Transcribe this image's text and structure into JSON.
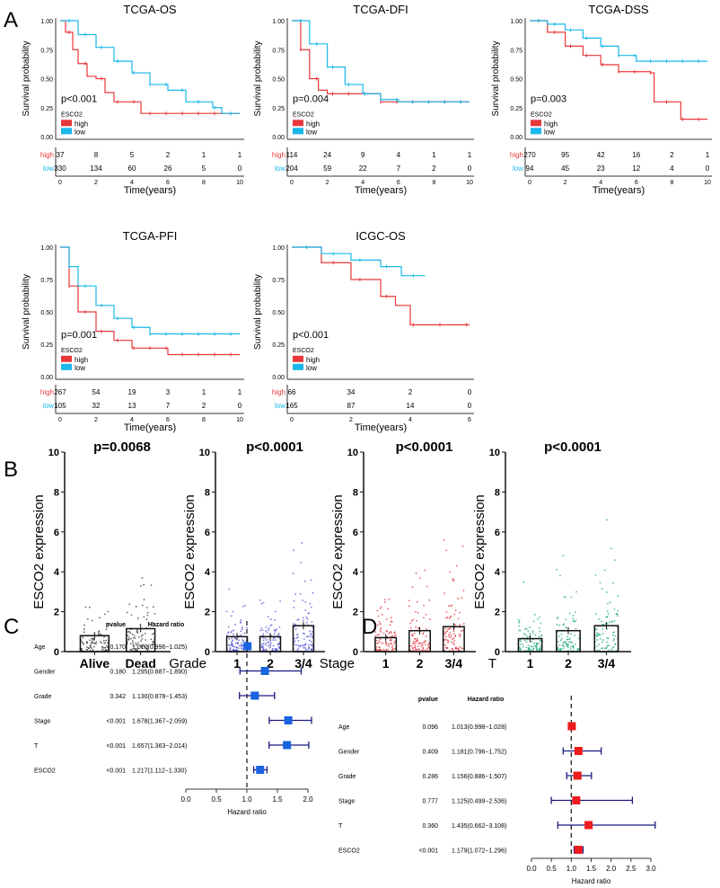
{
  "panel_letters": [
    "A",
    "B",
    "C",
    "D"
  ],
  "colors": {
    "high": "#e8373a",
    "low": "#1ab7ea",
    "grade": "#4b4bd6",
    "stage": "#e0303a",
    "t": "#1aa874",
    "forest_box_C": "#1a63e0",
    "forest_box_D": "#ee1c1c",
    "ci_line": "#1a1a80"
  },
  "chart_data": [
    {
      "type": "line",
      "subtype": "kaplan-meier",
      "title": "TCGA-OS",
      "ylabel": "Survival probability",
      "xlabel": "Time(years)",
      "xlim": [
        0,
        10
      ],
      "ylim": [
        0,
        1
      ],
      "xticks": [
        "0",
        "2",
        "4",
        "6",
        "8",
        "10"
      ],
      "yticks": [
        "0.00",
        "0.25",
        "0.50",
        "0.75",
        "1.00"
      ],
      "pvalue": "p<0.001",
      "legend_title": "ESCO2",
      "series": [
        {
          "name": "high",
          "points": [
            [
              0,
              1
            ],
            [
              0.3,
              0.9
            ],
            [
              0.7,
              0.75
            ],
            [
              1,
              0.63
            ],
            [
              1.5,
              0.52
            ],
            [
              2,
              0.5
            ],
            [
              2.5,
              0.38
            ],
            [
              3,
              0.3
            ],
            [
              4.3,
              0.3
            ],
            [
              4.5,
              0.2
            ],
            [
              10,
              0.2
            ]
          ],
          "at_risk": [
            37,
            8,
            5,
            2,
            1,
            1
          ]
        },
        {
          "name": "low",
          "points": [
            [
              0,
              1
            ],
            [
              1,
              0.88
            ],
            [
              2,
              0.77
            ],
            [
              3,
              0.65
            ],
            [
              4,
              0.55
            ],
            [
              5,
              0.45
            ],
            [
              6,
              0.4
            ],
            [
              7,
              0.3
            ],
            [
              8.5,
              0.25
            ],
            [
              9,
              0.2
            ],
            [
              10,
              0.2
            ]
          ],
          "at_risk": [
            330,
            134,
            60,
            26,
            5,
            0
          ]
        }
      ]
    },
    {
      "type": "line",
      "subtype": "kaplan-meier",
      "title": "TCGA-DFI",
      "ylabel": "Survival probability",
      "xlabel": "Time(years)",
      "xlim": [
        0,
        10
      ],
      "ylim": [
        0,
        1
      ],
      "xticks": [
        "0",
        "2",
        "4",
        "6",
        "8",
        "10"
      ],
      "yticks": [
        "0.00",
        "0.25",
        "0.50",
        "0.75",
        "1.00"
      ],
      "pvalue": "p=0.004",
      "legend_title": "ESCO2",
      "series": [
        {
          "name": "high",
          "points": [
            [
              0,
              1
            ],
            [
              0.5,
              0.75
            ],
            [
              1,
              0.5
            ],
            [
              1.5,
              0.4
            ],
            [
              2,
              0.37
            ],
            [
              4,
              0.37
            ],
            [
              5,
              0.3
            ],
            [
              10,
              0.3
            ]
          ],
          "at_risk": [
            114,
            24,
            9,
            4,
            1,
            1
          ]
        },
        {
          "name": "low",
          "points": [
            [
              0,
              1
            ],
            [
              1,
              0.8
            ],
            [
              2,
              0.6
            ],
            [
              3,
              0.45
            ],
            [
              4,
              0.37
            ],
            [
              5,
              0.32
            ],
            [
              6,
              0.3
            ],
            [
              10,
              0.3
            ]
          ],
          "at_risk": [
            204,
            59,
            22,
            7,
            2,
            0
          ]
        }
      ]
    },
    {
      "type": "line",
      "subtype": "kaplan-meier",
      "title": "TCGA-DSS",
      "ylabel": "Survival probability",
      "xlabel": "Time(years)",
      "xlim": [
        0,
        10
      ],
      "ylim": [
        0,
        1
      ],
      "xticks": [
        "0",
        "2",
        "4",
        "6",
        "8",
        "10"
      ],
      "yticks": [
        "0.00",
        "0.25",
        "0.50",
        "0.75",
        "1.00"
      ],
      "pvalue": "p=0.003",
      "legend_title": "ESCO2",
      "series": [
        {
          "name": "high",
          "points": [
            [
              0,
              1
            ],
            [
              1,
              0.9
            ],
            [
              2,
              0.78
            ],
            [
              3,
              0.7
            ],
            [
              4,
              0.62
            ],
            [
              5,
              0.56
            ],
            [
              6.8,
              0.55
            ],
            [
              7,
              0.3
            ],
            [
              8.5,
              0.15
            ],
            [
              10,
              0.15
            ]
          ],
          "at_risk": [
            270,
            95,
            42,
            16,
            2,
            1
          ]
        },
        {
          "name": "low",
          "points": [
            [
              0,
              1
            ],
            [
              1,
              0.97
            ],
            [
              2,
              0.92
            ],
            [
              3,
              0.85
            ],
            [
              4,
              0.78
            ],
            [
              5,
              0.7
            ],
            [
              6,
              0.65
            ],
            [
              10,
              0.65
            ]
          ],
          "at_risk": [
            94,
            45,
            23,
            12,
            4,
            0
          ]
        }
      ]
    },
    {
      "type": "line",
      "subtype": "kaplan-meier",
      "title": "TCGA-PFI",
      "ylabel": "Survival probability",
      "xlabel": "Time(years)",
      "xlim": [
        0,
        10
      ],
      "ylim": [
        0,
        1
      ],
      "xticks": [
        "0",
        "2",
        "4",
        "6",
        "8",
        "10"
      ],
      "yticks": [
        "0.00",
        "0.25",
        "0.50",
        "0.75",
        "1.00"
      ],
      "pvalue": "p=0.001",
      "legend_title": "ESCO2",
      "series": [
        {
          "name": "high",
          "points": [
            [
              0,
              1
            ],
            [
              0.5,
              0.7
            ],
            [
              1,
              0.5
            ],
            [
              2,
              0.35
            ],
            [
              3,
              0.28
            ],
            [
              4,
              0.22
            ],
            [
              6,
              0.17
            ],
            [
              10,
              0.17
            ]
          ],
          "at_risk": [
            267,
            54,
            19,
            3,
            1,
            1
          ]
        },
        {
          "name": "low",
          "points": [
            [
              0,
              1
            ],
            [
              0.5,
              0.85
            ],
            [
              1,
              0.7
            ],
            [
              2,
              0.55
            ],
            [
              3,
              0.45
            ],
            [
              4,
              0.38
            ],
            [
              5,
              0.33
            ],
            [
              10,
              0.33
            ]
          ],
          "at_risk": [
            105,
            32,
            13,
            7,
            2,
            0
          ]
        }
      ]
    },
    {
      "type": "line",
      "subtype": "kaplan-meier",
      "title": "ICGC-OS",
      "ylabel": "Survival probability",
      "xlabel": "Time(years)",
      "xlim": [
        0,
        6
      ],
      "ylim": [
        0,
        1
      ],
      "xticks": [
        "0",
        "2",
        "4",
        "6"
      ],
      "yticks": [
        "0.00",
        "0.25",
        "0.50",
        "0.75",
        "1.00"
      ],
      "pvalue": "p<0.001",
      "legend_title": "ESCO2",
      "series": [
        {
          "name": "high",
          "points": [
            [
              0,
              1
            ],
            [
              1,
              0.88
            ],
            [
              2,
              0.75
            ],
            [
              3,
              0.62
            ],
            [
              3.5,
              0.55
            ],
            [
              4,
              0.4
            ],
            [
              6,
              0.4
            ]
          ],
          "at_risk": [
            66,
            34,
            2,
            0
          ]
        },
        {
          "name": "low",
          "points": [
            [
              0,
              1
            ],
            [
              1,
              0.95
            ],
            [
              2,
              0.9
            ],
            [
              3,
              0.85
            ],
            [
              3.7,
              0.78
            ],
            [
              4.5,
              0.78
            ]
          ],
          "at_risk": [
            165,
            87,
            14,
            0
          ]
        }
      ]
    },
    {
      "type": "bar",
      "title": "p=0.0068",
      "ylabel": "ESCO2 expression",
      "xlabel": "",
      "categories": [
        "Alive",
        "Dead"
      ],
      "values": [
        0.8,
        1.15
      ],
      "ylim": [
        0,
        10
      ],
      "yticks": [
        "0",
        "2",
        "4",
        "6",
        "8",
        "10"
      ],
      "color": "#333333"
    },
    {
      "type": "bar",
      "title": "p<0.0001",
      "ylabel": "ESCO2 expression",
      "xlabel": "Grade",
      "categories": [
        "1",
        "2",
        "3/4"
      ],
      "values": [
        0.75,
        0.75,
        1.3
      ],
      "ylim": [
        0,
        10
      ],
      "yticks": [
        "0",
        "2",
        "4",
        "6",
        "8",
        "10"
      ],
      "color": "#4b4bd6"
    },
    {
      "type": "bar",
      "title": "p<0.0001",
      "ylabel": "ESCO2 expression",
      "xlabel": "Stage",
      "categories": [
        "1",
        "2",
        "3/4"
      ],
      "values": [
        0.7,
        1.05,
        1.25
      ],
      "ylim": [
        0,
        10
      ],
      "yticks": [
        "0",
        "2",
        "4",
        "6",
        "8",
        "10"
      ],
      "color": "#e0303a"
    },
    {
      "type": "bar",
      "title": "p<0.0001",
      "ylabel": "ESCO2 expression",
      "xlabel": "T",
      "categories": [
        "1",
        "2",
        "3/4"
      ],
      "values": [
        0.65,
        1.05,
        1.3
      ],
      "ylim": [
        0,
        10
      ],
      "yticks": [
        "0",
        "2",
        "4",
        "6",
        "8",
        "10"
      ],
      "color": "#1aa874"
    },
    {
      "type": "forest",
      "header_pvalue": "pvalue",
      "header_hr": "Hazard ratio",
      "xlabel": "Hazard ratio",
      "xlim": [
        0,
        2
      ],
      "xticks": [
        "0.0",
        "0.5",
        "1.0",
        "1.5",
        "2.0"
      ],
      "rows": [
        {
          "label": "Age",
          "pvalue": "0.170",
          "hr_text": "1.010(0.996−1.025)",
          "hr": 1.01,
          "lo": 0.996,
          "hi": 1.025
        },
        {
          "label": "Gender",
          "pvalue": "0.180",
          "hr_text": "1.295(0.887−1.890)",
          "hr": 1.295,
          "lo": 0.887,
          "hi": 1.89
        },
        {
          "label": "Grade",
          "pvalue": "0.342",
          "hr_text": "1.130(0.878−1.453)",
          "hr": 1.13,
          "lo": 0.878,
          "hi": 1.453
        },
        {
          "label": "Stage",
          "pvalue": "<0.001",
          "hr_text": "1.678(1.367−2.059)",
          "hr": 1.678,
          "lo": 1.367,
          "hi": 2.059
        },
        {
          "label": "T",
          "pvalue": "<0.001",
          "hr_text": "1.657(1.363−2.014)",
          "hr": 1.657,
          "lo": 1.363,
          "hi": 2.014
        },
        {
          "label": "ESCO2",
          "pvalue": "<0.001",
          "hr_text": "1.217(1.112−1.330)",
          "hr": 1.217,
          "lo": 1.112,
          "hi": 1.33
        }
      ]
    },
    {
      "type": "forest",
      "header_pvalue": "pvalue",
      "header_hr": "Hazard ratio",
      "xlabel": "Hazard ratio",
      "xlim": [
        0,
        3
      ],
      "xticks": [
        "0.0",
        "0.5",
        "1.0",
        "1.5",
        "2.0",
        "2.5",
        "3.0"
      ],
      "rows": [
        {
          "label": "Age",
          "pvalue": "0.096",
          "hr_text": "1.013(0.998−1.028)",
          "hr": 1.013,
          "lo": 0.998,
          "hi": 1.028
        },
        {
          "label": "Gender",
          "pvalue": "0.409",
          "hr_text": "1.181(0.796−1.752)",
          "hr": 1.181,
          "lo": 0.796,
          "hi": 1.752
        },
        {
          "label": "Grade",
          "pvalue": "0.286",
          "hr_text": "1.156(0.886−1.507)",
          "hr": 1.156,
          "lo": 0.886,
          "hi": 1.507
        },
        {
          "label": "Stage",
          "pvalue": "0.777",
          "hr_text": "1.125(0.499−2.536)",
          "hr": 1.125,
          "lo": 0.499,
          "hi": 2.536
        },
        {
          "label": "T",
          "pvalue": "0.360",
          "hr_text": "1.435(0.662−3.108)",
          "hr": 1.435,
          "lo": 0.662,
          "hi": 3.108
        },
        {
          "label": "ESCO2",
          "pvalue": "<0.001",
          "hr_text": "1.179(1.072−1.296)",
          "hr": 1.179,
          "lo": 1.072,
          "hi": 1.296
        }
      ]
    }
  ]
}
